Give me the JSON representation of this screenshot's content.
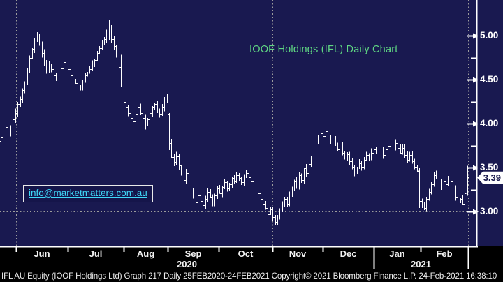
{
  "title": "IOOF Holdings (IFL) Daily Chart",
  "watermark": "info@marketmatters.com.au",
  "status_bar": "IFL AU Equity (IOOF Holdings Ltd) Graph 217  Daily 25FEB2020-24FEB2021 Copyright© 2021 Bloomberg Finance L.P. 24-Feb-2021 16:38:10",
  "colors": {
    "background": "#191950",
    "bottom_panel": "#000000",
    "bars": "#ffffff",
    "grid": "#9c9c9c",
    "axis": "#ffffff",
    "title_green": "#5fd783",
    "watermark_cyan": "#3fd8f8",
    "tag_bg": "#ffffff",
    "tag_text": "#15154a"
  },
  "y_axis": {
    "tick_labels": [
      "5.00",
      "4.50",
      "4.00",
      "3.50",
      "3.00"
    ],
    "last_price_label": "3.39"
  },
  "x_axis": {
    "month_labels": [
      "Jun",
      "Jul",
      "Aug",
      "Sep",
      "Oct",
      "Nov",
      "Dec",
      "Jan",
      "Feb"
    ],
    "year_labels": [
      "2020",
      "2021"
    ]
  },
  "chart_data": {
    "type": "bar",
    "subtype": "ohlc-daily",
    "title": "IOOF Holdings (IFL) Daily Chart",
    "security": "IFL AU Equity (IOOF Holdings Ltd)",
    "period": "25FEB2020-24FEB2021",
    "ylim": [
      2.6,
      5.4
    ],
    "y_ticks": [
      3.0,
      3.5,
      4.0,
      4.5,
      5.0
    ],
    "y_minor_ticks": [
      3.25,
      3.75,
      4.25,
      4.75
    ],
    "grid": "dotted",
    "legend_position": "none",
    "months": [
      "Jun",
      "Jul",
      "Aug",
      "Sep",
      "Oct",
      "Nov",
      "Dec",
      "Jan",
      "Feb"
    ],
    "last_price": 3.39,
    "first_open": 3.8,
    "closes": [
      3.85,
      3.92,
      3.96,
      3.9,
      3.95,
      4.05,
      4.12,
      4.22,
      4.28,
      4.38,
      4.45,
      4.6,
      4.75,
      4.85,
      4.95,
      5.0,
      4.9,
      4.8,
      4.68,
      4.6,
      4.66,
      4.62,
      4.55,
      4.5,
      4.58,
      4.63,
      4.7,
      4.66,
      4.62,
      4.55,
      4.5,
      4.46,
      4.42,
      4.4,
      4.48,
      4.55,
      4.58,
      4.62,
      4.68,
      4.72,
      4.8,
      4.86,
      4.92,
      4.96,
      5.02,
      5.08,
      4.96,
      4.88,
      4.76,
      4.64,
      4.48,
      4.25,
      4.18,
      4.12,
      4.06,
      4.02,
      4.1,
      4.18,
      4.12,
      4.06,
      3.98,
      4.05,
      4.12,
      4.18,
      4.22,
      4.16,
      4.1,
      4.18,
      4.26,
      4.32,
      3.78,
      3.62,
      3.56,
      3.63,
      3.52,
      3.42,
      3.36,
      3.44,
      3.32,
      3.24,
      3.16,
      3.1,
      3.18,
      3.12,
      3.07,
      3.14,
      3.22,
      3.17,
      3.11,
      3.18,
      3.26,
      3.21,
      3.28,
      3.33,
      3.26,
      3.31,
      3.38,
      3.34,
      3.41,
      3.38,
      3.33,
      3.4,
      3.44,
      3.39,
      3.34,
      3.37,
      3.29,
      3.21,
      3.14,
      3.09,
      3.04,
      2.97,
      3.02,
      2.94,
      2.88,
      2.93,
      3.01,
      3.08,
      3.14,
      3.09,
      3.19,
      3.27,
      3.34,
      3.29,
      3.41,
      3.36,
      3.49,
      3.44,
      3.54,
      3.61,
      3.69,
      3.77,
      3.84,
      3.89,
      3.86,
      3.91,
      3.84,
      3.79,
      3.84,
      3.77,
      3.71,
      3.74,
      3.67,
      3.61,
      3.65,
      3.57,
      3.51,
      3.45,
      3.5,
      3.55,
      3.51,
      3.59,
      3.64,
      3.61,
      3.67,
      3.71,
      3.69,
      3.74,
      3.69,
      3.64,
      3.71,
      3.75,
      3.69,
      3.74,
      3.78,
      3.72,
      3.67,
      3.72,
      3.64,
      3.59,
      3.64,
      3.57,
      3.51,
      3.47,
      3.12,
      3.08,
      3.04,
      3.14,
      3.22,
      3.31,
      3.41,
      3.45,
      3.35,
      3.29,
      3.34,
      3.31,
      3.37,
      3.34,
      3.27,
      3.17,
      3.11,
      3.14,
      3.09,
      3.21,
      3.39
    ],
    "ohlc_overrides": {
      "45": [
        4.98,
        5.18,
        4.95,
        5.08
      ],
      "50": [
        4.64,
        4.78,
        4.42,
        4.48
      ],
      "70": [
        4.1,
        4.12,
        3.7,
        3.78
      ],
      "114": [
        2.94,
        2.96,
        2.85,
        2.88
      ],
      "174": [
        3.46,
        3.5,
        3.04,
        3.12
      ],
      "194": [
        3.24,
        3.52,
        3.18,
        3.39
      ]
    }
  }
}
